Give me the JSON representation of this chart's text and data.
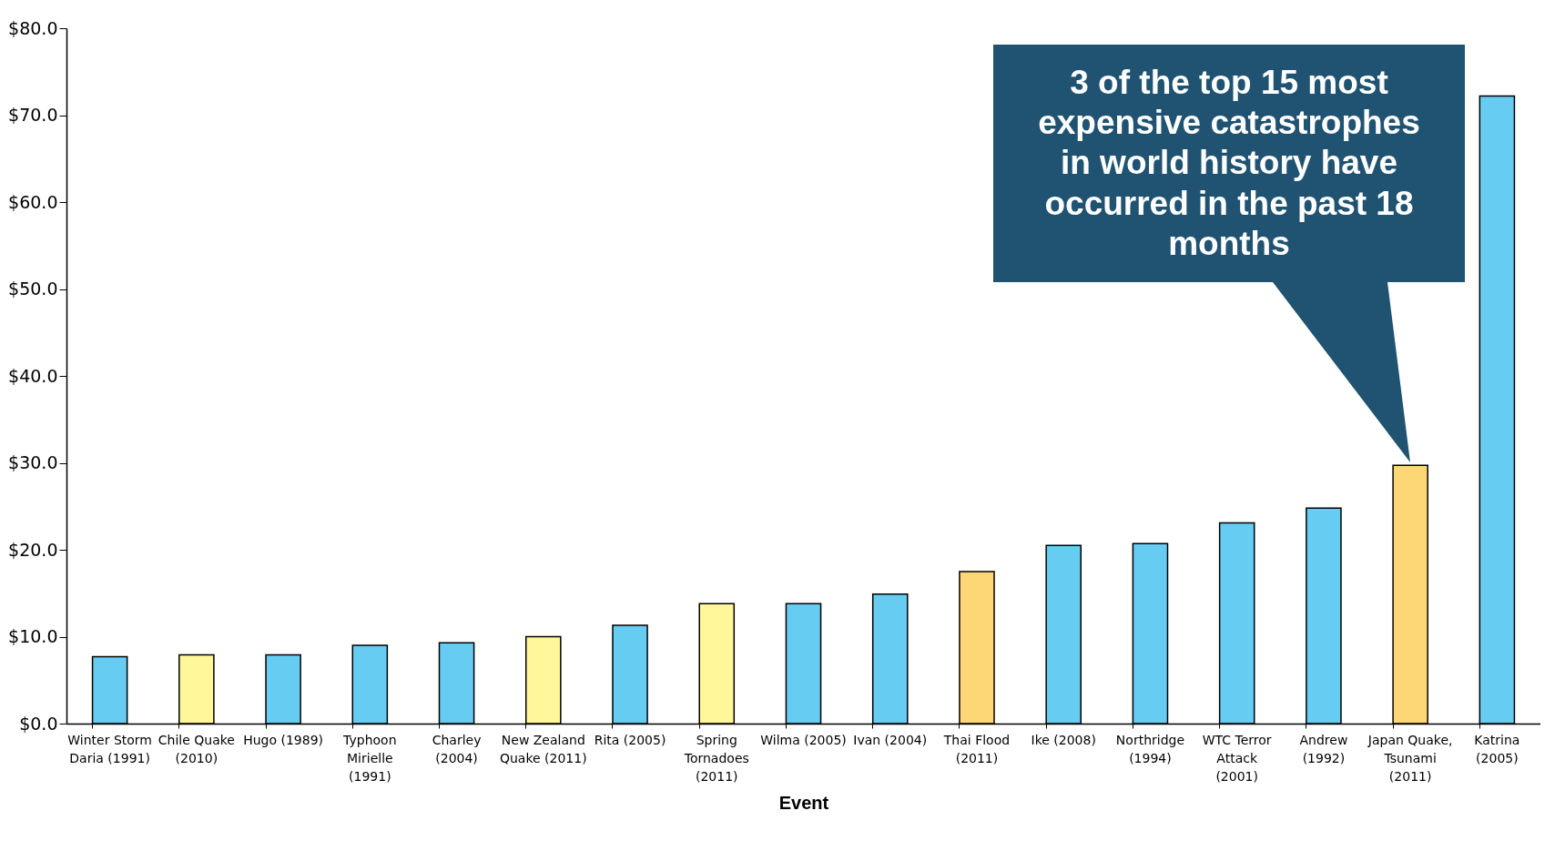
{
  "chart_data": {
    "type": "bar",
    "xlabel": "Event",
    "categories": [
      "Winter Storm Daria (1991)",
      "Chile Quake (2010)",
      "Hugo (1989)",
      "Typhoon Mirielle (1991)",
      "Charley (2004)",
      "New Zealand Quake (2011)",
      "Rita (2005)",
      "Spring Tornadoes (2011)",
      "Wilma (2005)",
      "Ivan (2004)",
      "Thai Flood (2011)",
      "Ike (2008)",
      "Northridge (1994)",
      "WTC Terror Attack (2001)",
      "Andrew (1992)",
      "Japan Quake, Tsunami (2011)",
      "Katrina (2005)"
    ],
    "values": [
      7.7,
      7.9,
      7.9,
      9.0,
      9.3,
      10.0,
      11.3,
      13.8,
      13.8,
      14.9,
      17.5,
      20.5,
      20.7,
      23.1,
      24.8,
      29.7,
      72.2
    ],
    "colors": [
      "#66ccf2",
      "#fff799",
      "#66ccf2",
      "#66ccf2",
      "#66ccf2",
      "#fff799",
      "#66ccf2",
      "#fff799",
      "#66ccf2",
      "#66ccf2",
      "#fdd775",
      "#66ccf2",
      "#66ccf2",
      "#66ccf2",
      "#66ccf2",
      "#fdd775",
      "#66ccf2"
    ],
    "ylim": [
      0,
      80
    ],
    "yticks": [
      {
        "value": 0,
        "label": "$0.0"
      },
      {
        "value": 10,
        "label": "$10.0"
      },
      {
        "value": 20,
        "label": "$20.0"
      },
      {
        "value": 30,
        "label": "$30.0"
      },
      {
        "value": 40,
        "label": "$40.0"
      },
      {
        "value": 50,
        "label": "$50.0"
      },
      {
        "value": 60,
        "label": "$60.0"
      },
      {
        "value": 70,
        "label": "$70.0"
      },
      {
        "value": 80,
        "label": "$80.0"
      }
    ],
    "grid": false,
    "annotations": [
      "3 of the top 15 most expensive catastrophes in world history have occurred in the past 18 months"
    ]
  }
}
